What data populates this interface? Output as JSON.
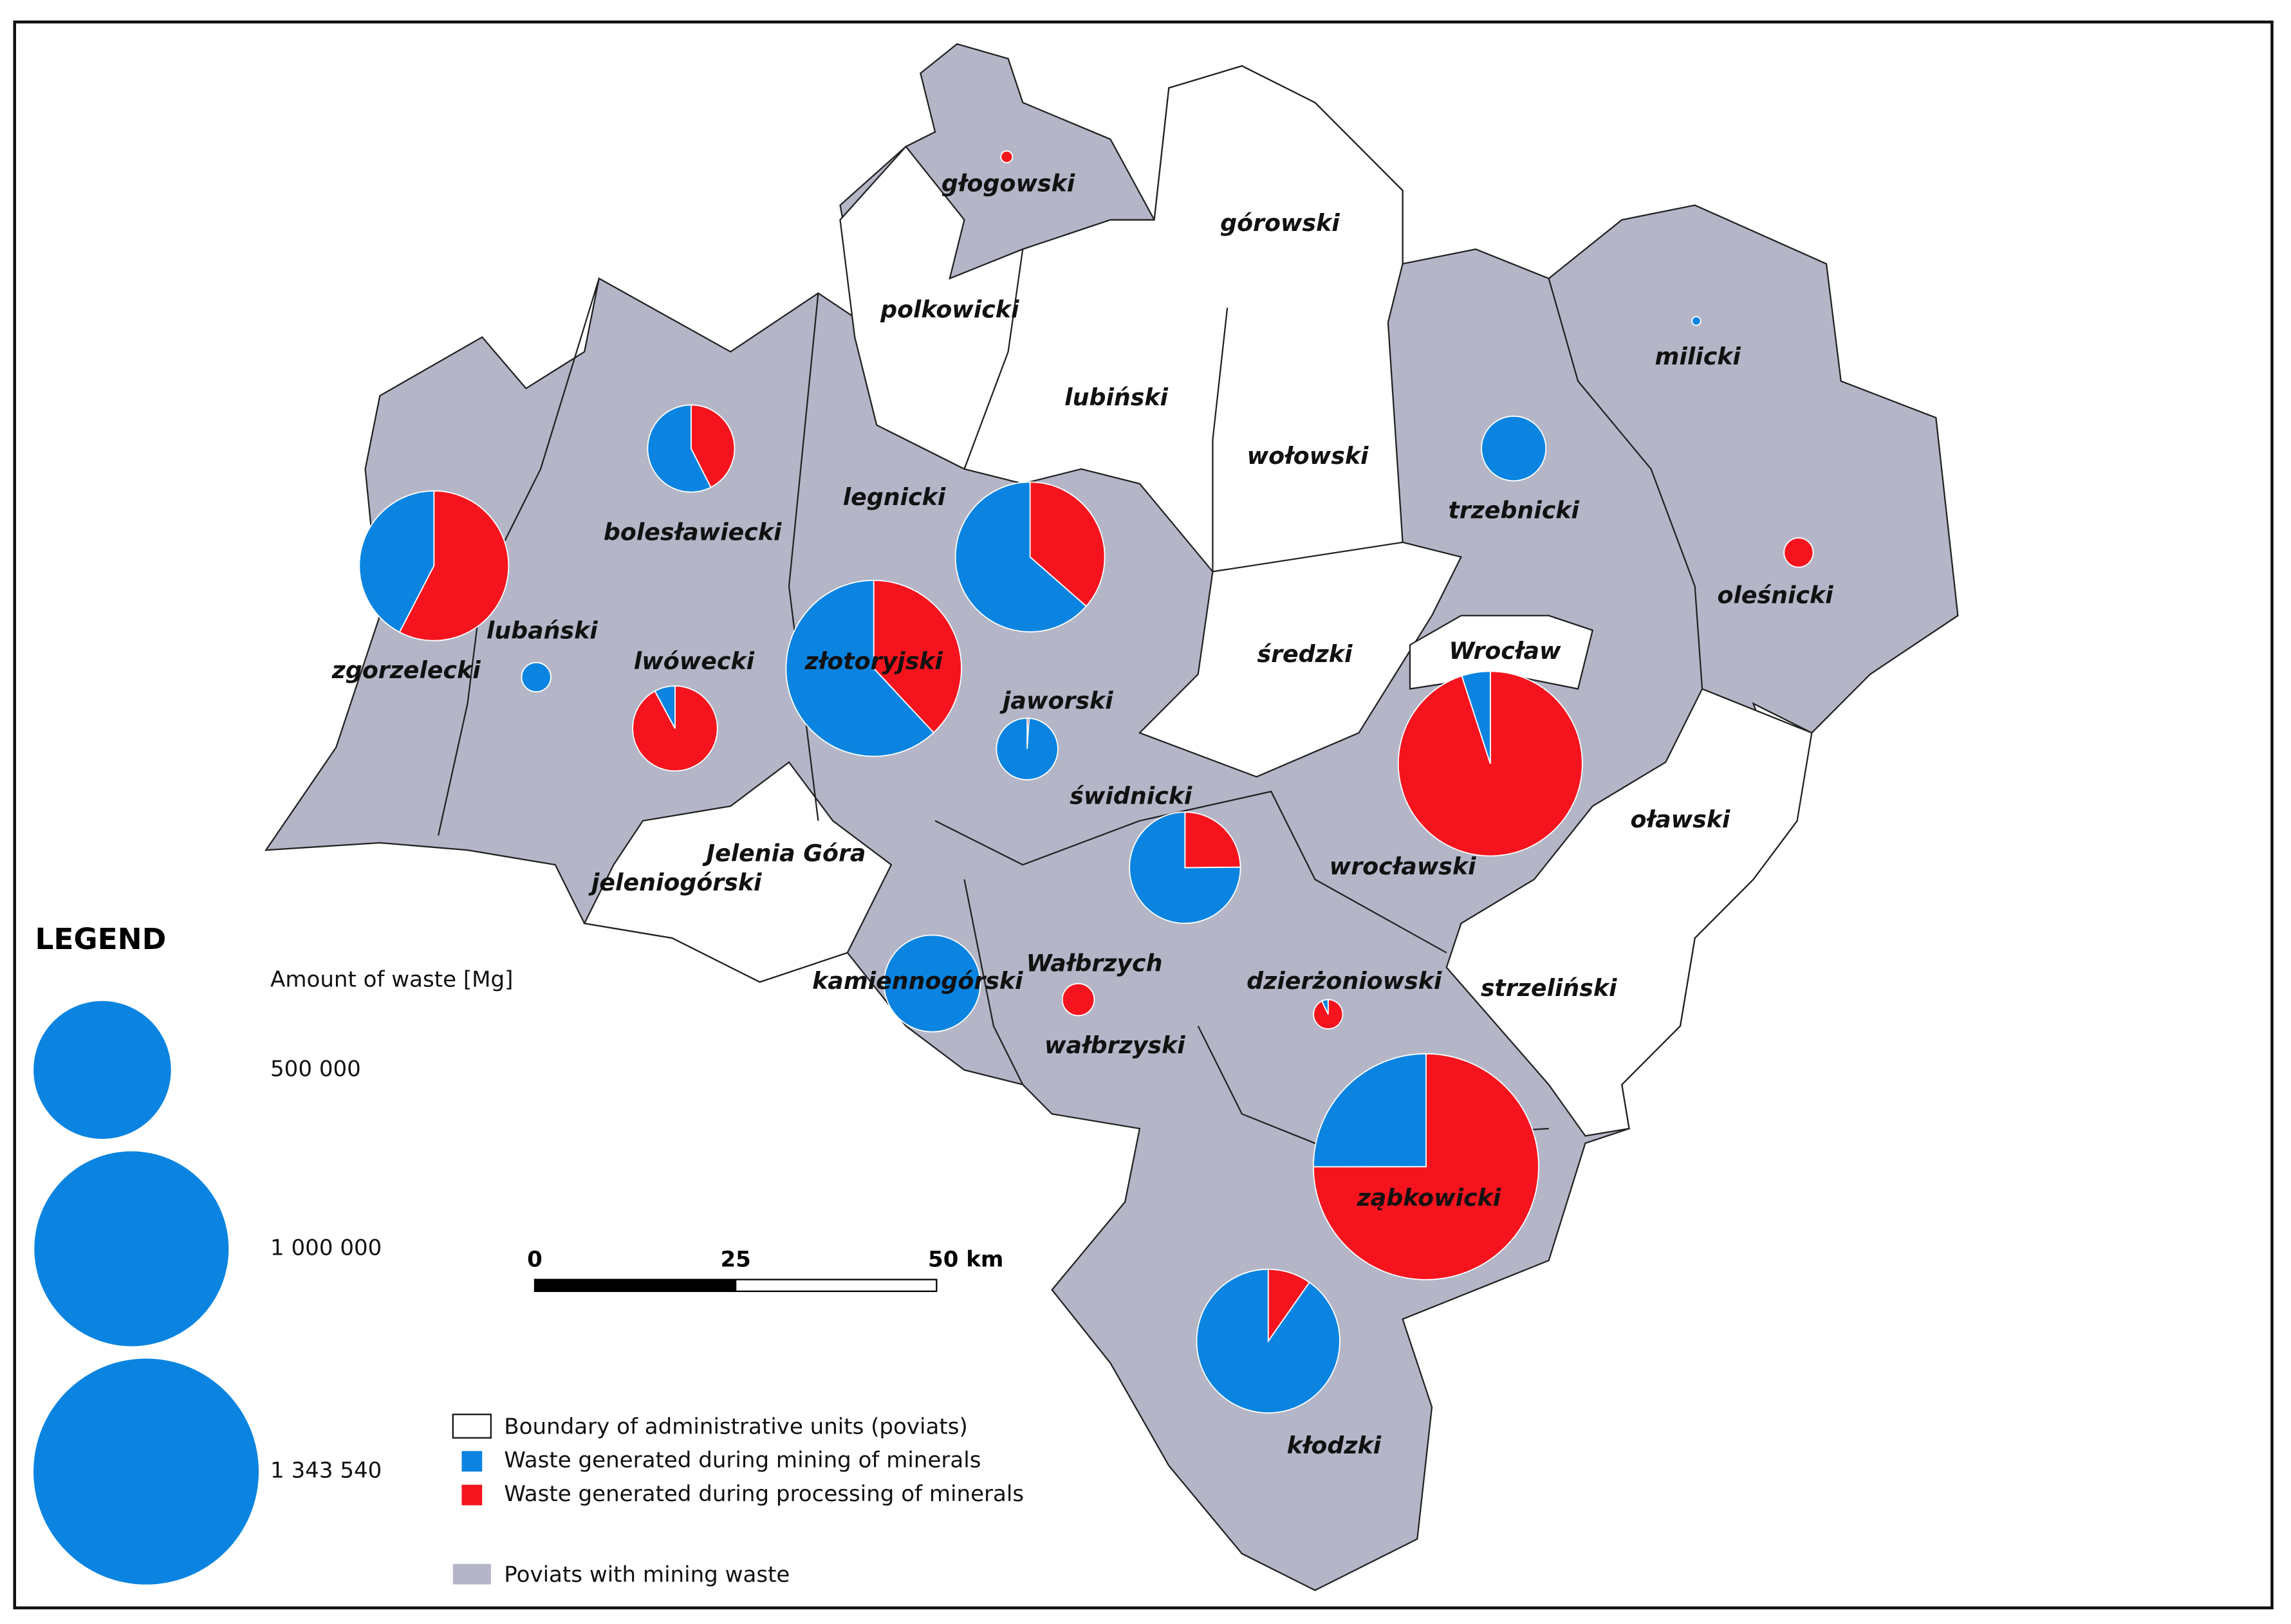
{
  "legend": {
    "title": "LEGEND",
    "amount_title": "Amount of waste [Mg]",
    "sizes": [
      {
        "value": 500000,
        "label": "500 000"
      },
      {
        "value": 1000000,
        "label": "1 000 000"
      },
      {
        "value": 1343540,
        "label": "1 343 540"
      }
    ],
    "entries": [
      "Boundary of administrative units (poviats)",
      "Waste generated during mining of minerals",
      "Waste generated during processing of minerals",
      "Poviats with mining waste"
    ],
    "colors": {
      "mining": "#0a84e0",
      "processing": "#f5141e",
      "poviat": "#b4b6c8"
    }
  },
  "scale_bar": {
    "ticks": [
      0,
      25,
      {
        "value": 50,
        "label": "50 km"
      }
    ]
  },
  "poviats": [
    {
      "name": "głogowski",
      "processing": 3600
    },
    {
      "name": "górowski"
    },
    {
      "name": "polkowicki"
    },
    {
      "name": "lubiński"
    },
    {
      "name": "milicki",
      "mining": 2000
    },
    {
      "name": "wołowski"
    },
    {
      "name": "trzebnicki",
      "mining": 110000
    },
    {
      "name": "bolesławiecki",
      "mining": 115000,
      "processing": 85000
    },
    {
      "name": "legnicki",
      "mining": 375000,
      "processing": 215000
    },
    {
      "name": "oleśnicki",
      "processing": 22600
    },
    {
      "name": "lubański",
      "mining": 22600
    },
    {
      "name": "zgorzelecki",
      "mining": 250000,
      "processing": 340000
    },
    {
      "name": "lwówecki",
      "mining": 15000,
      "processing": 175000
    },
    {
      "name": "złotoryjski",
      "mining": 505000,
      "processing": 310000
    },
    {
      "name": "Wrocław"
    },
    {
      "name": "średzki"
    },
    {
      "name": "jaworski",
      "mining": 99000,
      "processing": 1000
    },
    {
      "name": "świdnicki",
      "mining": 245000,
      "processing": 81000
    },
    {
      "name": "oławski"
    },
    {
      "name": "Jelenia Góra"
    },
    {
      "name": "jeleniogórski"
    },
    {
      "name": "wrocławski",
      "mining": 45000,
      "processing": 852000
    },
    {
      "name": "Wałbrzych",
      "processing": 27000
    },
    {
      "name": "kamiennogórski",
      "mining": 246000
    },
    {
      "name": "dzierżoniowski",
      "mining": 1600,
      "processing": 21000
    },
    {
      "name": "strzeliński"
    },
    {
      "name": "wałbrzyski"
    },
    {
      "name": "ząbkowicki",
      "mining": 336000,
      "processing": 1007540
    },
    {
      "name": "kłodzki",
      "mining": 490000,
      "processing": 53000
    }
  ]
}
